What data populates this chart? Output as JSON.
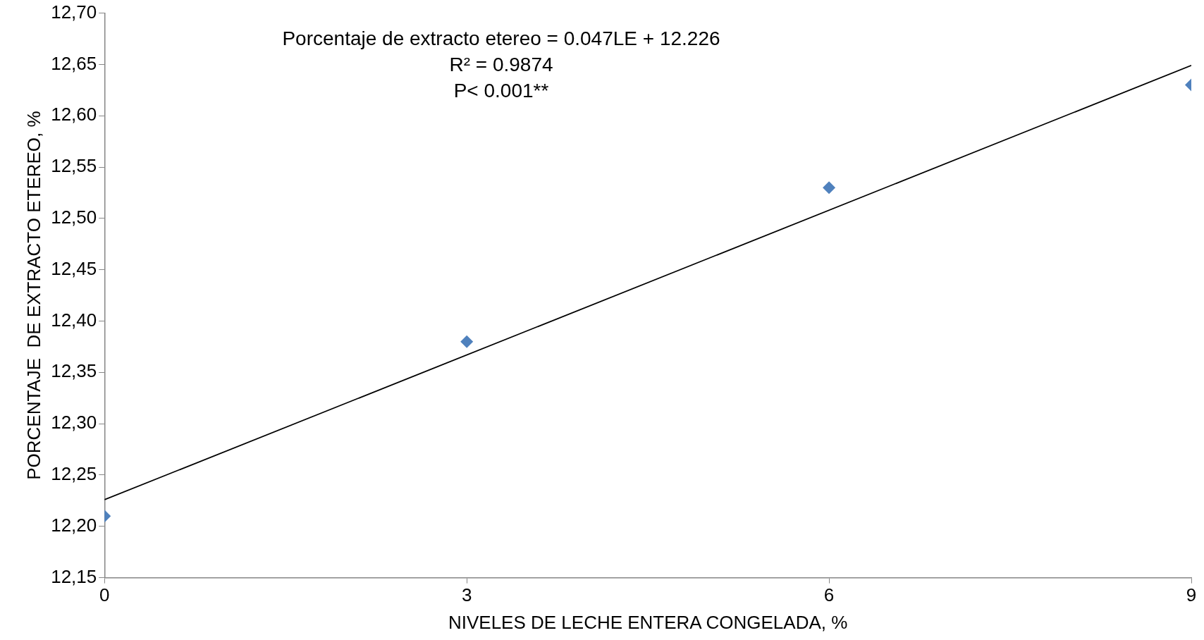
{
  "chart_data": {
    "type": "scatter",
    "xlabel": "NIVELES DE LECHE ENTERA CONGELADA, %",
    "ylabel": "PORCENTAJE  DE EXTRACTO ETEREO, %",
    "xlim": [
      0,
      9
    ],
    "xticks": [
      0,
      3,
      6,
      9
    ],
    "ylim": [
      12.15,
      12.7
    ],
    "yticks": [
      {
        "value": 12.15,
        "label": "12,15"
      },
      {
        "value": 12.2,
        "label": "12,20"
      },
      {
        "value": 12.25,
        "label": "12,25"
      },
      {
        "value": 12.3,
        "label": "12,30"
      },
      {
        "value": 12.35,
        "label": "12,35"
      },
      {
        "value": 12.4,
        "label": "12,40"
      },
      {
        "value": 12.45,
        "label": "12,45"
      },
      {
        "value": 12.5,
        "label": "12,50"
      },
      {
        "value": 12.55,
        "label": "12,55"
      },
      {
        "value": 12.6,
        "label": "12,60"
      },
      {
        "value": 12.65,
        "label": "12,65"
      },
      {
        "value": 12.7,
        "label": "12,70"
      }
    ],
    "grid": false,
    "legend": false,
    "marker": "diamond",
    "series": [
      {
        "color": "#4f81bd",
        "x": [
          0,
          3,
          6,
          9
        ],
        "values": [
          12.21,
          12.38,
          12.53,
          12.63
        ]
      },
      {
        "type": "line",
        "marker": "none",
        "color": "#000000",
        "x": [
          0,
          9
        ],
        "values": [
          12.226,
          12.649
        ]
      }
    ],
    "annotations": [
      "Porcentaje de extracto etereo = 0.047LE + 12.226",
      "R² = 0.9874",
      "P< 0.001**"
    ]
  }
}
